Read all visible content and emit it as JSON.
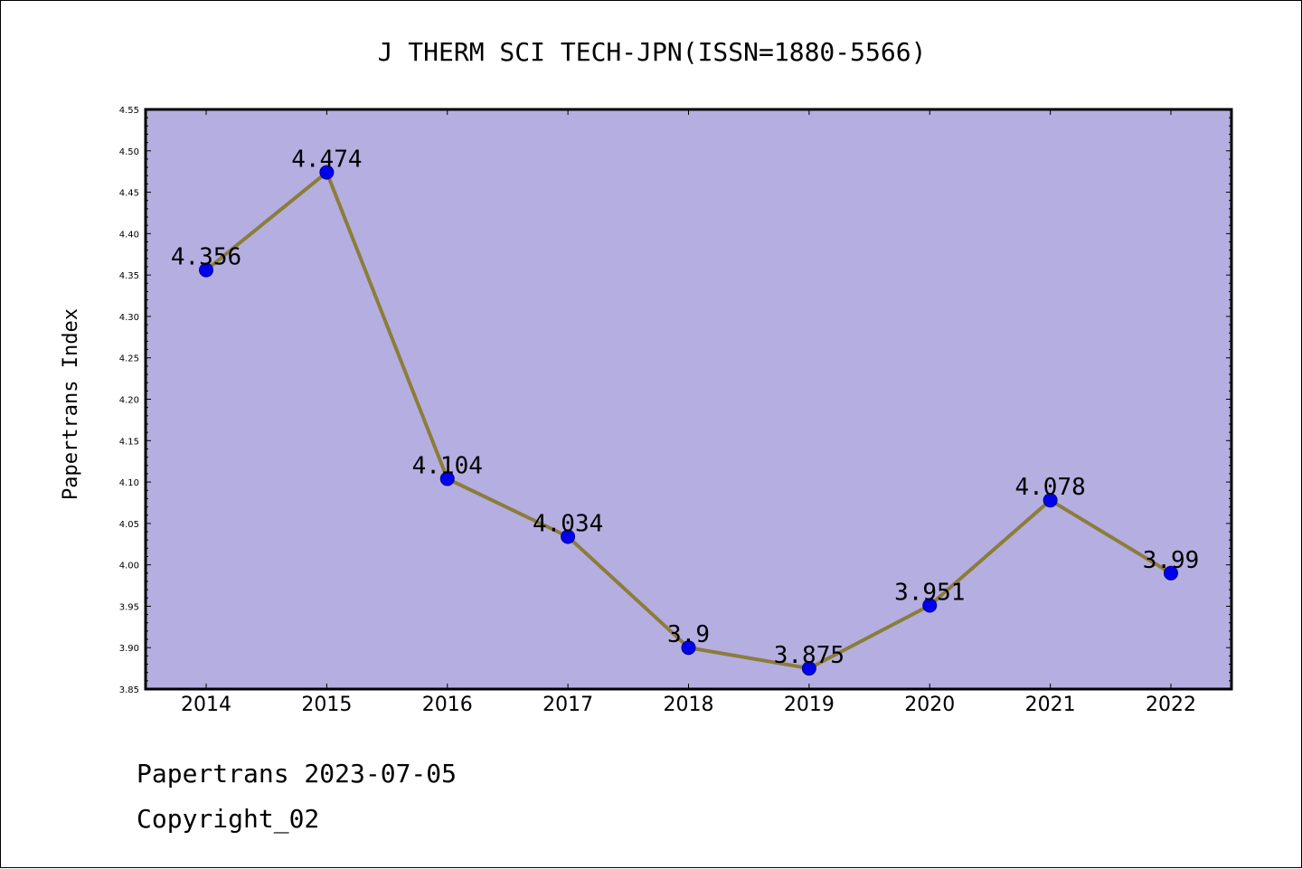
{
  "chart_data": {
    "type": "line",
    "title": "J THERM SCI TECH-JPN(ISSN=1880-5566)",
    "xlabel": "",
    "ylabel": "Papertrans Index",
    "categories": [
      "2014",
      "2015",
      "2016",
      "2017",
      "2018",
      "2019",
      "2020",
      "2021",
      "2022"
    ],
    "values": [
      4.356,
      4.474,
      4.104,
      4.034,
      3.9,
      3.875,
      3.951,
      4.078,
      3.99
    ],
    "data_labels": [
      "4.356",
      "4.474",
      "4.104",
      "4.034",
      "3.9",
      "3.875",
      "3.951",
      "4.078",
      "3.99"
    ],
    "ylim": [
      3.85,
      4.55
    ],
    "yticks": [
      "3.85",
      "3.90",
      "3.95",
      "4.00",
      "4.05",
      "4.10",
      "4.15",
      "4.20",
      "4.25",
      "4.30",
      "4.35",
      "4.40",
      "4.45",
      "4.50",
      "4.55"
    ],
    "grid": false,
    "legend": "none",
    "colors": {
      "plot_background": "#b5aee1",
      "line": "#8b7d3a",
      "marker": "#0000ee"
    }
  },
  "footer": {
    "line1": "Papertrans 2023-07-05",
    "line2": "Copyright_02"
  }
}
